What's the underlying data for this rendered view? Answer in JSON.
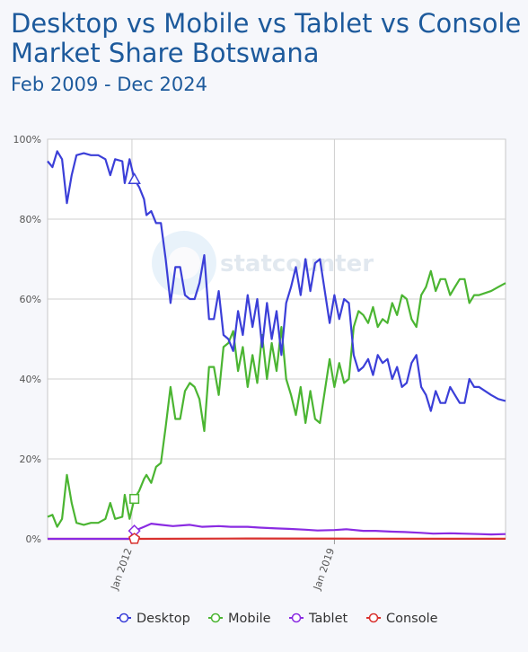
{
  "chart_data": {
    "type": "line",
    "title": "Desktop vs Mobile vs Tablet vs Console Market Share Botswana",
    "subtitle": "Feb 2009 - Dec 2024",
    "watermark": "statcounter",
    "x_ticks": [
      "Jan 2012",
      "Jan 2019"
    ],
    "y_ticks": [
      "0%",
      "20%",
      "40%",
      "60%",
      "80%",
      "100%"
    ],
    "ylim": [
      0,
      100
    ],
    "x_range": [
      "2009-02",
      "2024-12"
    ],
    "legend_position": "bottom",
    "series": [
      {
        "name": "Desktop",
        "color": "#3b3fd8",
        "marker": "triangle",
        "points": [
          [
            "2009-02",
            94.5
          ],
          [
            "2009-04",
            93
          ],
          [
            "2009-06",
            97
          ],
          [
            "2009-08",
            95
          ],
          [
            "2009-10",
            84
          ],
          [
            "2009-12",
            91
          ],
          [
            "2010-02",
            96
          ],
          [
            "2010-05",
            96.5
          ],
          [
            "2010-08",
            96
          ],
          [
            "2010-11",
            96
          ],
          [
            "2011-02",
            95
          ],
          [
            "2011-04",
            91
          ],
          [
            "2011-06",
            95
          ],
          [
            "2011-09",
            94.5
          ],
          [
            "2011-10",
            89
          ],
          [
            "2011-12",
            95
          ],
          [
            "2012-02",
            90
          ],
          [
            "2012-04",
            88
          ],
          [
            "2012-06",
            85
          ],
          [
            "2012-07",
            81
          ],
          [
            "2012-09",
            82
          ],
          [
            "2012-11",
            79
          ],
          [
            "2013-01",
            79
          ],
          [
            "2013-03",
            70
          ],
          [
            "2013-05",
            59
          ],
          [
            "2013-07",
            68
          ],
          [
            "2013-09",
            68
          ],
          [
            "2013-11",
            61
          ],
          [
            "2014-01",
            60
          ],
          [
            "2014-03",
            60
          ],
          [
            "2014-05",
            64
          ],
          [
            "2014-07",
            71
          ],
          [
            "2014-09",
            55
          ],
          [
            "2014-11",
            55
          ],
          [
            "2015-01",
            62
          ],
          [
            "2015-03",
            51
          ],
          [
            "2015-05",
            50
          ],
          [
            "2015-07",
            47
          ],
          [
            "2015-09",
            57
          ],
          [
            "2015-11",
            51
          ],
          [
            "2016-01",
            61
          ],
          [
            "2016-03",
            53
          ],
          [
            "2016-05",
            60
          ],
          [
            "2016-07",
            48
          ],
          [
            "2016-09",
            59
          ],
          [
            "2016-11",
            50
          ],
          [
            "2017-01",
            57
          ],
          [
            "2017-03",
            46
          ],
          [
            "2017-05",
            59
          ],
          [
            "2017-07",
            63
          ],
          [
            "2017-09",
            68
          ],
          [
            "2017-11",
            61
          ],
          [
            "2018-01",
            70
          ],
          [
            "2018-03",
            62
          ],
          [
            "2018-05",
            69
          ],
          [
            "2018-07",
            70
          ],
          [
            "2018-09",
            62
          ],
          [
            "2018-11",
            54
          ],
          [
            "2019-01",
            61
          ],
          [
            "2019-03",
            55
          ],
          [
            "2019-05",
            60
          ],
          [
            "2019-07",
            59
          ],
          [
            "2019-09",
            46
          ],
          [
            "2019-11",
            42
          ],
          [
            "2020-01",
            43
          ],
          [
            "2020-03",
            45
          ],
          [
            "2020-05",
            41
          ],
          [
            "2020-07",
            46
          ],
          [
            "2020-09",
            44
          ],
          [
            "2020-11",
            45
          ],
          [
            "2021-01",
            40
          ],
          [
            "2021-03",
            43
          ],
          [
            "2021-05",
            38
          ],
          [
            "2021-07",
            39
          ],
          [
            "2021-09",
            44
          ],
          [
            "2021-11",
            46
          ],
          [
            "2022-01",
            38
          ],
          [
            "2022-03",
            36
          ],
          [
            "2022-05",
            32
          ],
          [
            "2022-07",
            37
          ],
          [
            "2022-09",
            34
          ],
          [
            "2022-11",
            34
          ],
          [
            "2023-01",
            38
          ],
          [
            "2023-03",
            36
          ],
          [
            "2023-05",
            34
          ],
          [
            "2023-07",
            34
          ],
          [
            "2023-09",
            40
          ],
          [
            "2023-11",
            38
          ],
          [
            "2024-01",
            38
          ],
          [
            "2024-06",
            36
          ],
          [
            "2024-09",
            35
          ],
          [
            "2024-12",
            34.5
          ]
        ]
      },
      {
        "name": "Mobile",
        "color": "#4bb532",
        "marker": "square",
        "points": [
          [
            "2009-02",
            5.5
          ],
          [
            "2009-04",
            6
          ],
          [
            "2009-06",
            3
          ],
          [
            "2009-08",
            5
          ],
          [
            "2009-10",
            16
          ],
          [
            "2009-12",
            9
          ],
          [
            "2010-02",
            4
          ],
          [
            "2010-05",
            3.5
          ],
          [
            "2010-08",
            4
          ],
          [
            "2010-11",
            4
          ],
          [
            "2011-02",
            5
          ],
          [
            "2011-04",
            9
          ],
          [
            "2011-06",
            5
          ],
          [
            "2011-09",
            5.5
          ],
          [
            "2011-10",
            11
          ],
          [
            "2011-12",
            5
          ],
          [
            "2012-02",
            10
          ],
          [
            "2012-04",
            12
          ],
          [
            "2012-06",
            15
          ],
          [
            "2012-07",
            16
          ],
          [
            "2012-09",
            14
          ],
          [
            "2012-11",
            18
          ],
          [
            "2013-01",
            19
          ],
          [
            "2013-03",
            28
          ],
          [
            "2013-05",
            38
          ],
          [
            "2013-07",
            30
          ],
          [
            "2013-09",
            30
          ],
          [
            "2013-11",
            37
          ],
          [
            "2014-01",
            39
          ],
          [
            "2014-03",
            38
          ],
          [
            "2014-05",
            35
          ],
          [
            "2014-07",
            27
          ],
          [
            "2014-09",
            43
          ],
          [
            "2014-11",
            43
          ],
          [
            "2015-01",
            36
          ],
          [
            "2015-03",
            48
          ],
          [
            "2015-05",
            49
          ],
          [
            "2015-07",
            52
          ],
          [
            "2015-09",
            42
          ],
          [
            "2015-11",
            48
          ],
          [
            "2016-01",
            38
          ],
          [
            "2016-03",
            46
          ],
          [
            "2016-05",
            39
          ],
          [
            "2016-07",
            51
          ],
          [
            "2016-09",
            40
          ],
          [
            "2016-11",
            49
          ],
          [
            "2017-01",
            42
          ],
          [
            "2017-03",
            53
          ],
          [
            "2017-05",
            40
          ],
          [
            "2017-07",
            36
          ],
          [
            "2017-09",
            31
          ],
          [
            "2017-11",
            38
          ],
          [
            "2018-01",
            29
          ],
          [
            "2018-03",
            37
          ],
          [
            "2018-05",
            30
          ],
          [
            "2018-07",
            29
          ],
          [
            "2018-09",
            37
          ],
          [
            "2018-11",
            45
          ],
          [
            "2019-01",
            38
          ],
          [
            "2019-03",
            44
          ],
          [
            "2019-05",
            39
          ],
          [
            "2019-07",
            40
          ],
          [
            "2019-09",
            53
          ],
          [
            "2019-11",
            57
          ],
          [
            "2020-01",
            56
          ],
          [
            "2020-03",
            54
          ],
          [
            "2020-05",
            58
          ],
          [
            "2020-07",
            53
          ],
          [
            "2020-09",
            55
          ],
          [
            "2020-11",
            54
          ],
          [
            "2021-01",
            59
          ],
          [
            "2021-03",
            56
          ],
          [
            "2021-05",
            61
          ],
          [
            "2021-07",
            60
          ],
          [
            "2021-09",
            55
          ],
          [
            "2021-11",
            53
          ],
          [
            "2022-01",
            61
          ],
          [
            "2022-03",
            63
          ],
          [
            "2022-05",
            67
          ],
          [
            "2022-07",
            62
          ],
          [
            "2022-09",
            65
          ],
          [
            "2022-11",
            65
          ],
          [
            "2023-01",
            61
          ],
          [
            "2023-03",
            63
          ],
          [
            "2023-05",
            65
          ],
          [
            "2023-07",
            65
          ],
          [
            "2023-09",
            59
          ],
          [
            "2023-11",
            61
          ],
          [
            "2024-01",
            61
          ],
          [
            "2024-06",
            62
          ],
          [
            "2024-09",
            63
          ],
          [
            "2024-12",
            64
          ]
        ]
      },
      {
        "name": "Tablet",
        "color": "#8a2be2",
        "marker": "diamond",
        "points": [
          [
            "2009-02",
            0
          ],
          [
            "2011-12",
            0
          ],
          [
            "2012-02",
            2
          ],
          [
            "2012-06",
            3
          ],
          [
            "2012-09",
            3.8
          ],
          [
            "2013-01",
            3.5
          ],
          [
            "2013-06",
            3.2
          ],
          [
            "2014-01",
            3.5
          ],
          [
            "2014-06",
            3
          ],
          [
            "2015-01",
            3.2
          ],
          [
            "2015-06",
            3
          ],
          [
            "2016-01",
            3
          ],
          [
            "2016-06",
            2.8
          ],
          [
            "2017-01",
            2.6
          ],
          [
            "2017-06",
            2.5
          ],
          [
            "2018-01",
            2.3
          ],
          [
            "2018-06",
            2.1
          ],
          [
            "2019-01",
            2.2
          ],
          [
            "2019-06",
            2.4
          ],
          [
            "2020-01",
            2
          ],
          [
            "2020-06",
            2
          ],
          [
            "2021-01",
            1.8
          ],
          [
            "2021-06",
            1.7
          ],
          [
            "2022-01",
            1.5
          ],
          [
            "2022-06",
            1.3
          ],
          [
            "2023-01",
            1.4
          ],
          [
            "2023-06",
            1.3
          ],
          [
            "2024-01",
            1.2
          ],
          [
            "2024-06",
            1.1
          ],
          [
            "2024-12",
            1.2
          ]
        ]
      },
      {
        "name": "Console",
        "color": "#d9312e",
        "marker": "pentagon",
        "points": [
          [
            "2009-02",
            0
          ],
          [
            "2012-02",
            0
          ],
          [
            "2016-01",
            0.1
          ],
          [
            "2020-01",
            0.05
          ],
          [
            "2024-12",
            0.02
          ]
        ]
      }
    ]
  }
}
